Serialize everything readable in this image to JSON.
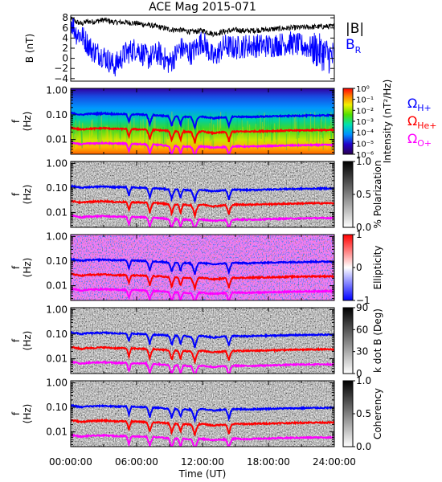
{
  "title": "ACE Mag 2015-071",
  "colors": {
    "field_magnitude": "#000000",
    "field_radial": "#0000ff",
    "cyclotron_h": "#0000ff",
    "cyclotron_he": "#ff0000",
    "cyclotron_o": "#ff00ff",
    "axis": "#000000"
  },
  "x_axis": {
    "label": "Time (UT)",
    "ticks": [
      "00:00:00",
      "06:00:00",
      "12:00:00",
      "18:00:00",
      "24:00:00"
    ],
    "range_hours": [
      0,
      24
    ]
  },
  "chart_data": [
    {
      "type": "line",
      "name": "B field",
      "ylabel": "B (nT)",
      "ylim": [
        -4.5,
        8.5
      ],
      "yticks": [
        "8",
        "6",
        "4",
        "2",
        "0",
        "−2",
        "−4"
      ],
      "legend": [
        "|B|",
        "BR"
      ],
      "series": [
        {
          "name": "|B|",
          "x": [
            0,
            0.5,
            1,
            1.5,
            2,
            3,
            4,
            5,
            6,
            7,
            8,
            9,
            10,
            11,
            12,
            13,
            14,
            15,
            16,
            18,
            20,
            22,
            24
          ],
          "values": [
            7.8,
            7.2,
            6.8,
            7.3,
            7.2,
            7.6,
            7.1,
            7.1,
            6.9,
            6.6,
            6.2,
            5.7,
            5.6,
            5.2,
            5.5,
            4.8,
            5.3,
            5.6,
            5.4,
            5.7,
            6.0,
            6.2,
            6.3
          ]
        },
        {
          "name": "BR",
          "x": [
            0,
            0.5,
            1,
            1.5,
            2,
            3,
            4,
            5,
            6,
            7,
            8,
            9,
            10,
            11,
            12,
            13,
            14,
            15,
            16,
            18,
            20,
            22,
            24
          ],
          "values": [
            7.5,
            5.0,
            4.5,
            3.0,
            1.5,
            0.5,
            -1.5,
            1.0,
            2.0,
            0.0,
            1.0,
            -1.0,
            2.0,
            1.0,
            3.5,
            0.0,
            2.5,
            2.0,
            2.5,
            2.5,
            3.0,
            2.0,
            0.0
          ]
        }
      ]
    },
    {
      "type": "heatmap",
      "name": "Power spectral density",
      "ylabel": "f (Hz)",
      "colorbar_label": "Intensity (nT²/Hz)",
      "colorbar_ticks": [
        "10⁰",
        "10⁻¹",
        "10⁻²",
        "10⁻³",
        "10⁻⁴",
        "10⁻⁵",
        "10⁻⁶"
      ],
      "ylim_hz": [
        0.0025,
        1.2
      ],
      "yticks": [
        "1.00",
        "0.10",
        "0.01"
      ]
    },
    {
      "type": "heatmap",
      "name": "Polarization",
      "ylabel": "f (Hz)",
      "colorbar_label": "% Polarization",
      "colorbar_ticks": [
        "1.0",
        "0.5",
        "0.0"
      ],
      "ylim_hz": [
        0.0025,
        1.2
      ],
      "yticks": [
        "1.00",
        "0.10",
        "0.01"
      ]
    },
    {
      "type": "heatmap",
      "name": "Ellipticity",
      "ylabel": "f (Hz)",
      "colorbar_label": "Ellipticity",
      "colorbar_ticks": [
        "1",
        "0",
        "−1"
      ],
      "ylim_hz": [
        0.0025,
        1.2
      ],
      "yticks": [
        "1.00",
        "0.10",
        "0.01"
      ]
    },
    {
      "type": "heatmap",
      "name": "Wave normal angle",
      "ylabel": "f (Hz)",
      "colorbar_label": "k dot B (Deg)",
      "colorbar_ticks": [
        "90",
        "60",
        "30",
        "0"
      ],
      "ylim_hz": [
        0.0025,
        1.2
      ],
      "yticks": [
        "1.00",
        "0.10",
        "0.01"
      ]
    },
    {
      "type": "heatmap",
      "name": "Coherency",
      "ylabel": "f (Hz)",
      "colorbar_label": "Coherency",
      "colorbar_ticks": [
        "1.0",
        "0.5",
        "0.0"
      ],
      "ylim_hz": [
        0.0025,
        1.2
      ],
      "yticks": [
        "1.00",
        "0.10",
        "0.01"
      ]
    }
  ],
  "cyclotron_lines": {
    "legend": [
      "ΩH+",
      "ΩHe+",
      "ΩO+"
    ],
    "x": [
      0,
      0.5,
      1,
      1.5,
      2,
      3,
      4,
      5,
      6,
      7,
      8,
      9,
      10,
      11,
      12,
      13,
      14,
      15,
      16,
      18,
      20,
      22,
      24
    ],
    "h_hz": [
      0.12,
      0.11,
      0.1,
      0.11,
      0.11,
      0.115,
      0.108,
      0.108,
      0.105,
      0.1,
      0.095,
      0.087,
      0.085,
      0.08,
      0.084,
      0.073,
      0.081,
      0.085,
      0.082,
      0.087,
      0.091,
      0.094,
      0.096
    ],
    "he_hz": [
      0.03,
      0.0275,
      0.025,
      0.0275,
      0.0275,
      0.029,
      0.027,
      0.027,
      0.026,
      0.025,
      0.024,
      0.022,
      0.021,
      0.02,
      0.021,
      0.018,
      0.02,
      0.021,
      0.021,
      0.022,
      0.023,
      0.024,
      0.024
    ],
    "o_hz": [
      0.0075,
      0.0069,
      0.0063,
      0.0069,
      0.0069,
      0.0072,
      0.0068,
      0.0068,
      0.0066,
      0.0063,
      0.006,
      0.0054,
      0.0053,
      0.005,
      0.0052,
      0.0046,
      0.005,
      0.0053,
      0.0051,
      0.0054,
      0.0057,
      0.0059,
      0.006
    ],
    "dips": [
      {
        "t": 5.3,
        "depth": 0.55,
        "width": 0.25
      },
      {
        "t": 7.2,
        "depth": 0.6,
        "width": 0.3
      },
      {
        "t": 9.2,
        "depth": 0.6,
        "width": 0.3
      },
      {
        "t": 10.0,
        "depth": 0.55,
        "width": 0.25
      },
      {
        "t": 11.3,
        "depth": 0.65,
        "width": 0.35
      },
      {
        "t": 14.4,
        "depth": 0.6,
        "width": 0.3
      }
    ]
  }
}
